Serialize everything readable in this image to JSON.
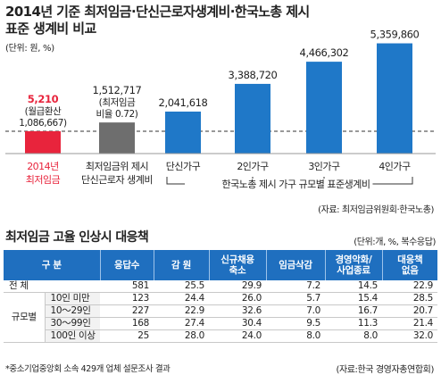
{
  "title_lines": [
    "2014년 기준 최저임금·단신근로자생계비·한국노총 제시",
    "표준 생계비 비교"
  ],
  "unit": "(단위: 원, %)",
  "chart_data": {
    "type": "bar",
    "categories": [
      "2014년\n최저임금",
      "최저임금위 제시\n단신근로자 생계비",
      "단신가구",
      "2인가구",
      "3인가구",
      "4인가구"
    ],
    "values": [
      1086667,
      1512717,
      2041618,
      3388720,
      4466302,
      5359860
    ],
    "value_labels": [
      [
        "5,210",
        "(월급환산",
        "1,086,667)"
      ],
      [
        "1,512,717",
        "(최저임금",
        "비율 0.72)"
      ],
      [
        "2,041,618"
      ],
      [
        "3,388,720"
      ],
      [
        "4,466,302"
      ],
      [
        "5,359,860"
      ]
    ],
    "bar_colors": [
      "#e8243c",
      "#6e6e6e",
      "#1f78c8",
      "#1f78c8",
      "#1f78c8",
      "#1f78c8"
    ],
    "bracket_label": "한국노총 제시 가구 규모별 표준생계비",
    "source": "(자료: 최저임금위원회·한국노총)",
    "ylim": [
      0,
      5600000
    ]
  },
  "table": {
    "title": "최저임금 고율 인상시 대응책",
    "unit": "(단위:개, %, 복수응답)",
    "headers": [
      "구 분",
      "응답수",
      "감 원",
      "신규채용\n축소",
      "임금삭감",
      "경영악화/\n사업종료",
      "대응책\n없음"
    ],
    "rows": [
      {
        "label": "전 체",
        "values": [
          "581",
          "25.5",
          "29.9",
          "7.2",
          "14.5",
          "22.9"
        ]
      },
      {
        "group": "규모별",
        "label": "10인 미만",
        "values": [
          "123",
          "24.4",
          "26.0",
          "5.7",
          "15.4",
          "28.5"
        ]
      },
      {
        "group": "규모별",
        "label": "10～29인",
        "values": [
          "227",
          "22.9",
          "32.6",
          "7.0",
          "16.7",
          "20.7"
        ]
      },
      {
        "group": "규모별",
        "label": "30～99인",
        "values": [
          "168",
          "27.4",
          "30.4",
          "9.5",
          "11.3",
          "21.4"
        ]
      },
      {
        "group": "규모별",
        "label": "100인 이상",
        "values": [
          "25",
          "28.0",
          "24.0",
          "8.0",
          "8.0",
          "32.0"
        ]
      }
    ],
    "group_label": "규모별",
    "footnote": "*중소기업중앙회 소속 429개 업체 설문조사 결과",
    "source": "(자료:한국 경영자총연합회)"
  },
  "colors": {
    "header": "#1f6fbf",
    "red": "#e8243c",
    "gray": "#6e6e6e",
    "blue": "#1f78c8",
    "label_red": "#e8243c"
  }
}
